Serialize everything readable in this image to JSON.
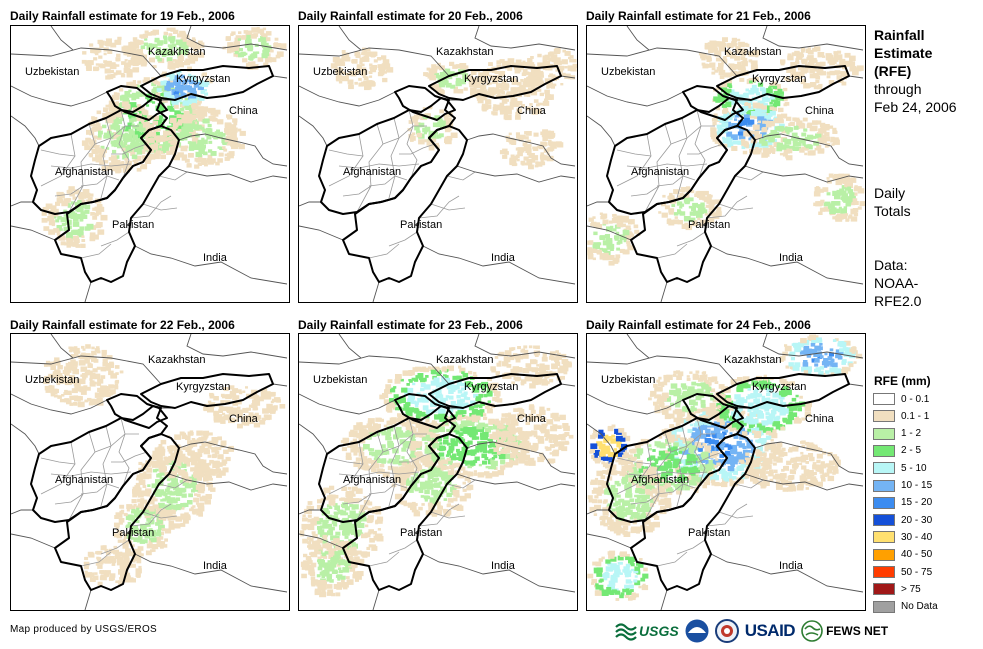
{
  "panels": [
    {
      "title": "Daily Rainfall estimate for 19 Feb., 2006",
      "rain": "heavy"
    },
    {
      "title": "Daily Rainfall estimate for 20 Feb., 2006",
      "rain": "light"
    },
    {
      "title": "Daily Rainfall estimate for 21 Feb., 2006",
      "rain": "east"
    },
    {
      "title": "Daily Rainfall estimate for 22 Feb., 2006",
      "rain": "south"
    },
    {
      "title": "Daily Rainfall estimate for 23 Feb., 2006",
      "rain": "wide"
    },
    {
      "title": "Daily Rainfall estimate for 24 Feb., 2006",
      "rain": "wet"
    }
  ],
  "place_labels": {
    "kazakhstan": "Kazakhstan",
    "uzbekistan": "Uzbekistan",
    "kyrgyzstan": "Kyrgyzstan",
    "china": "China",
    "afghanistan": "Afghanistan",
    "pakistan": "Pakistan",
    "india": "India"
  },
  "side": {
    "title1": "Rainfall",
    "title2": "Estimate",
    "title3": "(RFE)",
    "through1": "through",
    "through2": "Feb 24, 2006",
    "daily1": "Daily",
    "daily2": "Totals",
    "data1": "Data:",
    "data2": "NOAA-",
    "data3": "RFE2.0"
  },
  "legend": {
    "title": "RFE (mm)",
    "items": [
      {
        "label": "0 - 0.1",
        "color": "#ffffff"
      },
      {
        "label": "0.1 - 1",
        "color": "#f1dfc0"
      },
      {
        "label": "1 - 2",
        "color": "#b9f0a6"
      },
      {
        "label": "2 - 5",
        "color": "#74e874"
      },
      {
        "label": "5 - 10",
        "color": "#b8f6f6"
      },
      {
        "label": "10 - 15",
        "color": "#74b4f4"
      },
      {
        "label": "15 - 20",
        "color": "#3c8cf0"
      },
      {
        "label": "20 - 30",
        "color": "#1450d8"
      },
      {
        "label": "30 - 40",
        "color": "#ffe070"
      },
      {
        "label": "40 - 50",
        "color": "#ffa000"
      },
      {
        "label": "50 - 75",
        "color": "#ff3c00"
      },
      {
        "label": "> 75",
        "color": "#a01818"
      },
      {
        "label": "No Data",
        "color": "#a0a0a0"
      }
    ]
  },
  "credit": "Map produced by USGS/EROS",
  "logos": {
    "usgs": "USGS",
    "usaid": "USAID",
    "fewsnet": "FEWS NET"
  }
}
